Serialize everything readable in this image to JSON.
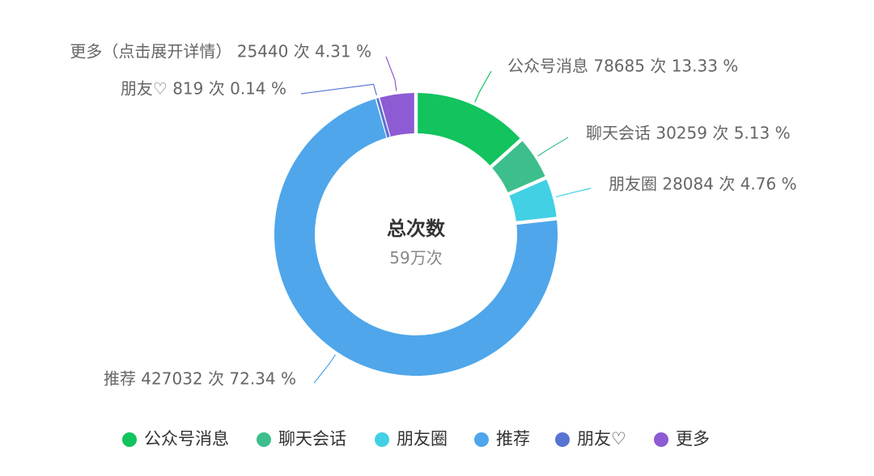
{
  "chart_data": {
    "type": "pie",
    "donut": true,
    "center": {
      "title": "总次数",
      "subtitle": "59万次"
    },
    "slices": [
      {
        "name": "公众号消息",
        "value": 78685,
        "unit": "次",
        "percent": "13.33",
        "color": "#12C35E",
        "label": "公众号消息 78685 次 13.33 %"
      },
      {
        "name": "聊天会话",
        "value": 30259,
        "unit": "次",
        "percent": "5.13",
        "color": "#3CBF8C",
        "label": "聊天会话 30259 次 5.13 %"
      },
      {
        "name": "朋友圈",
        "value": 28084,
        "unit": "次",
        "percent": "4.76",
        "color": "#42D0E4",
        "label": "朋友圈 28084 次 4.76 %"
      },
      {
        "name": "推荐",
        "value": 427032,
        "unit": "次",
        "percent": "72.34",
        "color": "#4FA6EA",
        "label": "推荐 427032 次 72.34 %"
      },
      {
        "name": "朋友♡",
        "value": 819,
        "unit": "次",
        "percent": "0.14",
        "color": "#5874D2",
        "label": "朋友♡ 819 次 0.14 %"
      },
      {
        "name": "更多",
        "value": 25440,
        "unit": "次",
        "percent": "4.31",
        "color": "#8D5BD3",
        "label": "更多（点击展开详情） 25440 次 4.31 %"
      }
    ],
    "legend": {
      "placement": "bottom",
      "entries": [
        "公众号消息",
        "聊天会话",
        "朋友圈",
        "推荐",
        "朋友♡",
        "更多"
      ]
    }
  }
}
